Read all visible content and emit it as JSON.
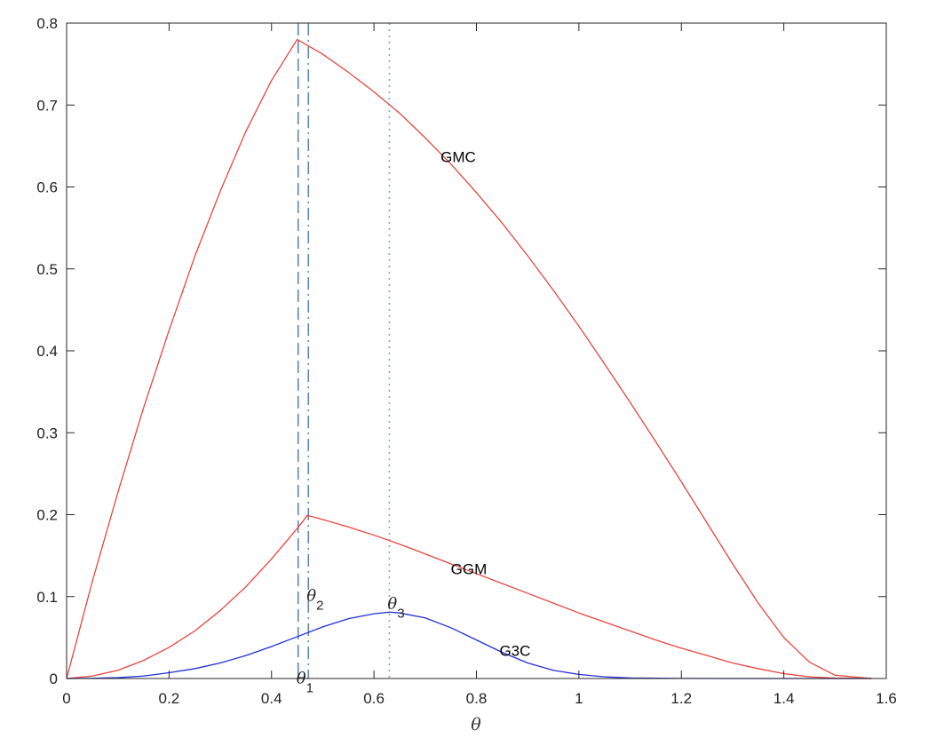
{
  "chart_data": {
    "type": "line",
    "title": "",
    "xlabel": "θ",
    "ylabel": "",
    "xlim": [
      0,
      1.6
    ],
    "ylim": [
      0,
      0.8
    ],
    "grid": false,
    "x_ticks": [
      0,
      0.2,
      0.4,
      0.6,
      0.8,
      1,
      1.2,
      1.4,
      1.6
    ],
    "x_tick_labels": [
      "0",
      "0.2",
      "0.4",
      "0.6",
      "0.8",
      "1",
      "1.2",
      "1.4",
      "1.6"
    ],
    "y_ticks": [
      0,
      0.1,
      0.2,
      0.3,
      0.4,
      0.5,
      0.6,
      0.7,
      0.8
    ],
    "y_tick_labels": [
      "0",
      "0.1",
      "0.2",
      "0.3",
      "0.4",
      "0.5",
      "0.6",
      "0.7",
      "0.8"
    ],
    "series": [
      {
        "label": "GMC",
        "color": "#e8453c",
        "label_at": [
          0.73,
          0.637
        ],
        "points": [
          [
            0,
            0
          ],
          [
            0.05,
            0.118
          ],
          [
            0.1,
            0.227
          ],
          [
            0.15,
            0.33
          ],
          [
            0.2,
            0.425
          ],
          [
            0.25,
            0.515
          ],
          [
            0.3,
            0.595
          ],
          [
            0.35,
            0.668
          ],
          [
            0.4,
            0.73
          ],
          [
            0.45,
            0.78
          ],
          [
            0.5,
            0.762
          ],
          [
            0.55,
            0.74
          ],
          [
            0.6,
            0.716
          ],
          [
            0.65,
            0.69
          ],
          [
            0.7,
            0.66
          ],
          [
            0.75,
            0.628
          ],
          [
            0.8,
            0.593
          ],
          [
            0.85,
            0.556
          ],
          [
            0.9,
            0.516
          ],
          [
            0.95,
            0.474
          ],
          [
            1.0,
            0.43
          ],
          [
            1.05,
            0.384
          ],
          [
            1.1,
            0.337
          ],
          [
            1.15,
            0.289
          ],
          [
            1.2,
            0.24
          ],
          [
            1.25,
            0.19
          ],
          [
            1.3,
            0.14
          ],
          [
            1.35,
            0.092
          ],
          [
            1.4,
            0.05
          ],
          [
            1.45,
            0.02
          ],
          [
            1.5,
            0.004
          ],
          [
            1.571,
            0
          ]
        ]
      },
      {
        "label": "GGM",
        "color": "#e8453c",
        "label_at": [
          0.75,
          0.134
        ],
        "points": [
          [
            0,
            0
          ],
          [
            0.05,
            0.003
          ],
          [
            0.1,
            0.01
          ],
          [
            0.15,
            0.022
          ],
          [
            0.2,
            0.038
          ],
          [
            0.25,
            0.058
          ],
          [
            0.3,
            0.083
          ],
          [
            0.35,
            0.112
          ],
          [
            0.4,
            0.146
          ],
          [
            0.45,
            0.183
          ],
          [
            0.47,
            0.199
          ],
          [
            0.5,
            0.194
          ],
          [
            0.55,
            0.185
          ],
          [
            0.6,
            0.175
          ],
          [
            0.65,
            0.164
          ],
          [
            0.7,
            0.152
          ],
          [
            0.75,
            0.14
          ],
          [
            0.8,
            0.128
          ],
          [
            0.85,
            0.116
          ],
          [
            0.9,
            0.104
          ],
          [
            0.95,
            0.092
          ],
          [
            1.0,
            0.08
          ],
          [
            1.05,
            0.069
          ],
          [
            1.1,
            0.058
          ],
          [
            1.15,
            0.047
          ],
          [
            1.2,
            0.037
          ],
          [
            1.25,
            0.028
          ],
          [
            1.3,
            0.019
          ],
          [
            1.35,
            0.012
          ],
          [
            1.4,
            0.006
          ],
          [
            1.45,
            0.002
          ],
          [
            1.5,
            0.0005
          ],
          [
            1.571,
            0
          ]
        ]
      },
      {
        "label": "G3C",
        "color": "#1f2fd8",
        "label_at": [
          0.845,
          0.034
        ],
        "points": [
          [
            0,
            0
          ],
          [
            0.05,
            0.0003
          ],
          [
            0.1,
            0.001
          ],
          [
            0.15,
            0.003
          ],
          [
            0.2,
            0.007
          ],
          [
            0.25,
            0.012
          ],
          [
            0.3,
            0.019
          ],
          [
            0.35,
            0.028
          ],
          [
            0.4,
            0.039
          ],
          [
            0.45,
            0.051
          ],
          [
            0.5,
            0.063
          ],
          [
            0.55,
            0.073
          ],
          [
            0.6,
            0.079
          ],
          [
            0.63,
            0.081
          ],
          [
            0.65,
            0.08
          ],
          [
            0.7,
            0.074
          ],
          [
            0.75,
            0.062
          ],
          [
            0.8,
            0.047
          ],
          [
            0.85,
            0.032
          ],
          [
            0.9,
            0.019
          ],
          [
            0.95,
            0.01
          ],
          [
            1.0,
            0.005
          ],
          [
            1.05,
            0.002
          ],
          [
            1.1,
            0.0006
          ],
          [
            1.2,
            0.0001
          ],
          [
            1.3,
            0
          ],
          [
            1.571,
            0
          ]
        ]
      }
    ],
    "vertical_lines": [
      {
        "x": 0.452,
        "style": "dashed",
        "color": "#5e86b0",
        "label": "θ",
        "sub": "1",
        "label_at": [
          0.452,
          -0.006
        ]
      },
      {
        "x": 0.472,
        "style": "dashdot",
        "color": "#5e86b0",
        "label": "θ",
        "sub": "2",
        "label_at": [
          0.472,
          0.095
        ]
      },
      {
        "x": 0.63,
        "style": "dotted",
        "color": "#7aa6cf",
        "label": "θ",
        "sub": "3",
        "label_at": [
          0.63,
          0.085
        ]
      }
    ]
  }
}
